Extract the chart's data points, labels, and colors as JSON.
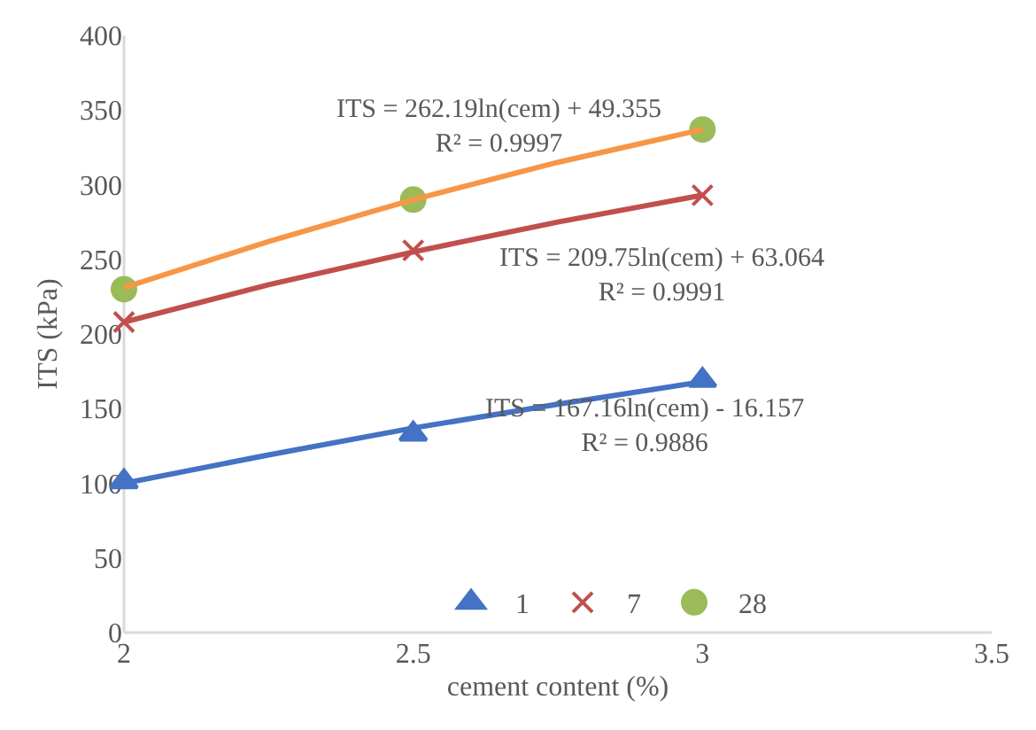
{
  "chart_data": {
    "type": "scatter",
    "xlabel": "cement content (%)",
    "ylabel": "ITS (kPa)",
    "x": [
      2,
      2.5,
      3
    ],
    "series": [
      {
        "name": "1",
        "marker": "triangle",
        "color": "#4472c4",
        "values": [
          101,
          133,
          169
        ]
      },
      {
        "name": "7",
        "marker": "cross",
        "color": "#c0504d",
        "values": [
          208,
          256,
          293
        ]
      },
      {
        "name": "28",
        "marker": "circle",
        "color": "#9bbb59",
        "values": [
          230,
          290,
          337
        ]
      },
      {
        "type": "line",
        "marker": "none",
        "color": "#4472c4",
        "x": [
          2,
          2.25,
          2.5,
          2.75,
          3
        ],
        "values": [
          100,
          119,
          137,
          153,
          168
        ]
      },
      {
        "type": "line",
        "marker": "none",
        "color": "#c0504d",
        "x": [
          2,
          2.25,
          2.5,
          2.75,
          3
        ],
        "values": [
          208,
          233,
          255,
          275,
          293
        ]
      },
      {
        "type": "line",
        "marker": "none",
        "color": "#f79646",
        "x": [
          2,
          2.25,
          2.5,
          2.75,
          3
        ],
        "values": [
          231,
          262,
          290,
          315,
          337
        ]
      }
    ],
    "xlim": [
      2,
      3.5
    ],
    "xticks": [
      2,
      2.5,
      3,
      3.5
    ],
    "ylim": [
      0,
      400
    ],
    "yticks": [
      0,
      50,
      100,
      150,
      200,
      250,
      300,
      350,
      400
    ],
    "grid": false,
    "legend": "bottom",
    "line_style": "solid",
    "annotations": [
      "ITS = 262.19ln(cem) + 49.355\nR² = 0.9997",
      "ITS = 209.75ln(cem) + 63.064\nR² = 0.9991",
      "ITS = 167.16ln(cem) - 16.157\nR² = 0.9886"
    ]
  }
}
